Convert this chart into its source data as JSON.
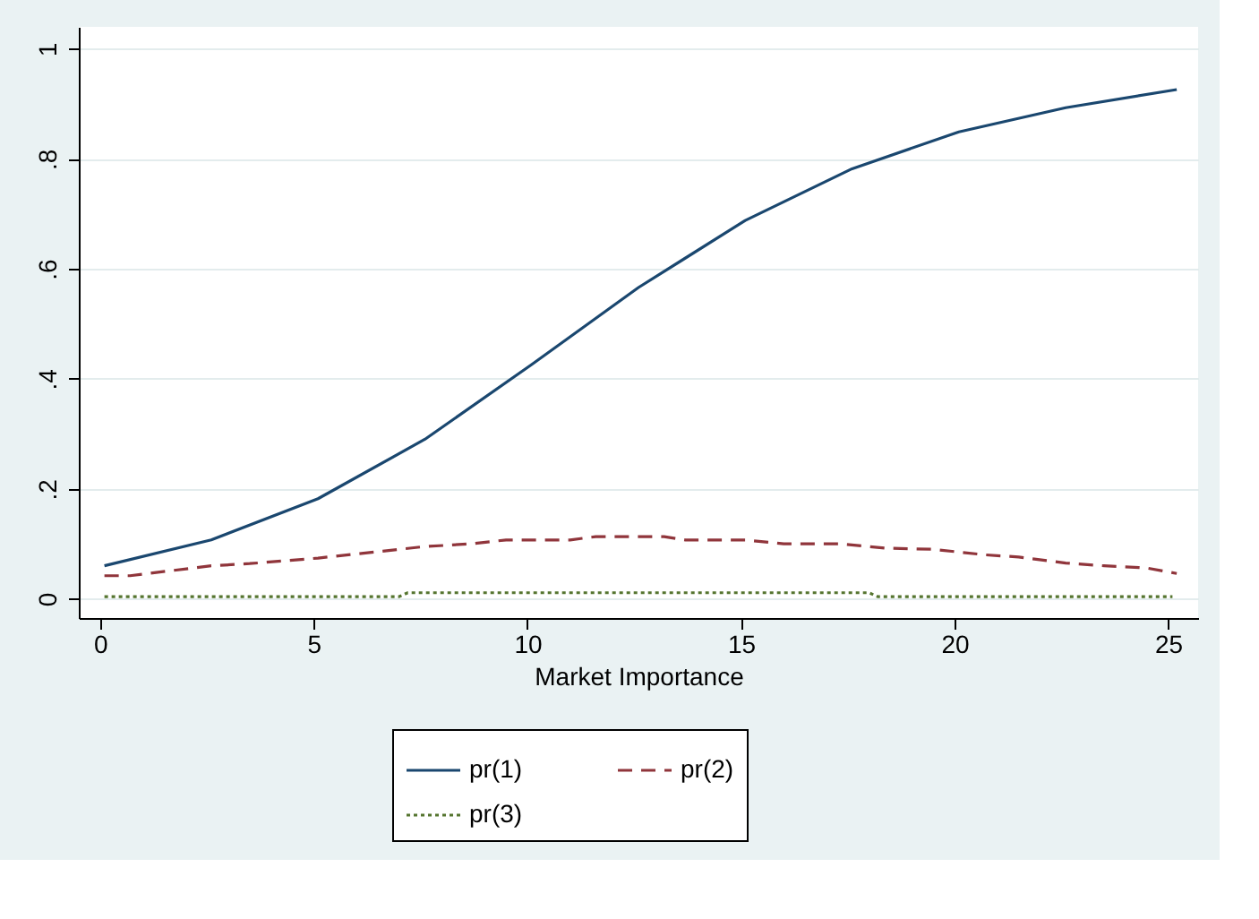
{
  "chart_data": {
    "type": "line",
    "xlabel": "Market Importance",
    "xlim": [
      -0.5,
      25.7
    ],
    "xticks": [
      0,
      5,
      10,
      15,
      20,
      25
    ],
    "ylim": [
      -0.035,
      1.04
    ],
    "yticks": [
      {
        "value": 0,
        "label": "0"
      },
      {
        "value": 0.2,
        "label": ".2"
      },
      {
        "value": 0.4,
        "label": ".4"
      },
      {
        "value": 0.6,
        "label": ".6"
      },
      {
        "value": 0.8,
        "label": ".8"
      },
      {
        "value": 1,
        "label": "1"
      }
    ],
    "grid": "y",
    "legend": "bottom",
    "marker": "none",
    "series": [
      {
        "name": "pr(1)",
        "color": "#1a476f",
        "line_style": "solid",
        "x": [
          0.1,
          2.6,
          5.1,
          7.6,
          10.1,
          12.6,
          15.1,
          17.6,
          20.1,
          22.6,
          25.2
        ],
        "values": [
          0.06,
          0.107,
          0.182,
          0.29,
          0.426,
          0.566,
          0.688,
          0.782,
          0.849,
          0.893,
          0.926
        ]
      },
      {
        "name": "pr(2)",
        "color": "#90353b",
        "line_style": "dashed",
        "x": [
          0.1,
          0.7,
          2.6,
          3.5,
          5.1,
          7.6,
          8.7,
          9.5,
          11,
          11.6,
          13.2,
          13.7,
          15.1,
          16,
          17.3,
          18.4,
          19.5,
          20.7,
          21.5,
          22.6,
          23.5,
          24.5,
          25.2
        ],
        "values": [
          0.042,
          0.042,
          0.06,
          0.064,
          0.074,
          0.095,
          0.1,
          0.107,
          0.107,
          0.113,
          0.113,
          0.107,
          0.107,
          0.1,
          0.1,
          0.092,
          0.09,
          0.08,
          0.076,
          0.065,
          0.06,
          0.056,
          0.046
        ]
      },
      {
        "name": "pr(3)",
        "color": "#55752f",
        "line_style": "dotted",
        "x": [
          0.1,
          7.0,
          7.2,
          18.0,
          18.2,
          25.1
        ],
        "values": [
          0.004,
          0.004,
          0.011,
          0.011,
          0.004,
          0.004
        ]
      }
    ]
  }
}
